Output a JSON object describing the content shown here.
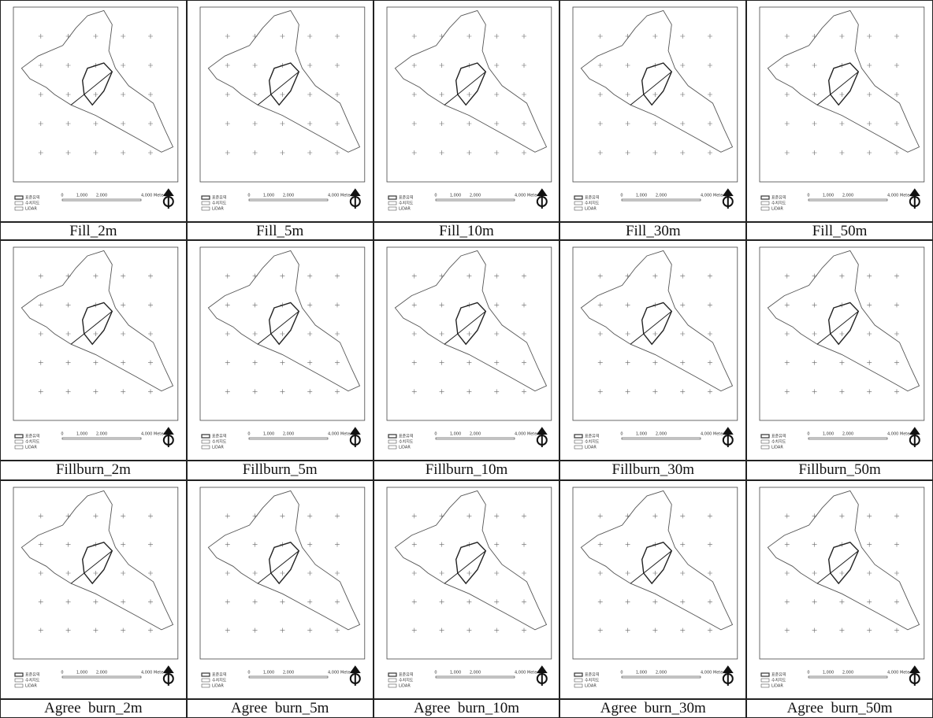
{
  "panels": [
    {
      "caption": "Fill_2m"
    },
    {
      "caption": "Fill_5m"
    },
    {
      "caption": "Fill_10m"
    },
    {
      "caption": "Fill_30m"
    },
    {
      "caption": "Fill_50m"
    },
    {
      "caption": "Fillburn_2m"
    },
    {
      "caption": "Fillburn_5m"
    },
    {
      "caption": "Fillburn_10m"
    },
    {
      "caption": "Fillburn_30m"
    },
    {
      "caption": "Fillburn_50m"
    },
    {
      "caption": "Agree  burn_2m"
    },
    {
      "caption": "Agree  burn_5m"
    },
    {
      "caption": "Agree  burn_10m"
    },
    {
      "caption": "Agree  burn_30m"
    },
    {
      "caption": "Agree  burn_50m"
    }
  ],
  "legend": [
    "표준유역",
    "수치지도",
    "LiDAR"
  ],
  "scale": [
    "0",
    "1,000",
    "2,000",
    "4,000 Meters"
  ]
}
